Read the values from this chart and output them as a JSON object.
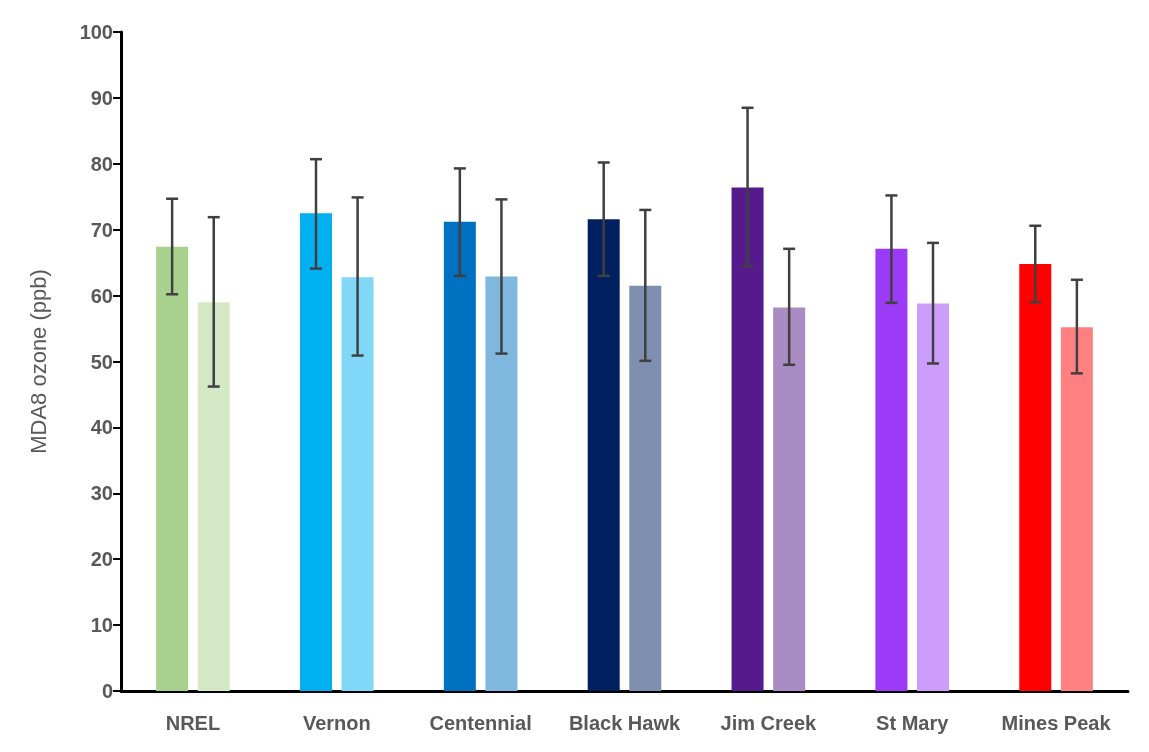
{
  "chart_data": {
    "type": "bar",
    "ylabel": "MDA8 ozone (ppb)",
    "categories": [
      "NREL",
      "Vernon",
      "Centennial",
      "Black Hawk",
      "Jim Creek",
      "St Mary",
      "Mines Peak"
    ],
    "series": [
      {
        "colors": [
          "#a9d18e",
          "#00b0f0",
          "#0070c0",
          "#002060",
          "#551a8b",
          "#9b3bf7",
          "#ff0000"
        ],
        "values": [
          67.4,
          72.5,
          71.2,
          71.6,
          76.4,
          67.1,
          64.8
        ],
        "errors": [
          [
            60.2,
            74.7
          ],
          [
            64.1,
            80.7
          ],
          [
            63.0,
            79.3
          ],
          [
            63.0,
            80.2
          ],
          [
            64.4,
            88.5
          ],
          [
            58.9,
            75.2
          ],
          [
            59.0,
            70.6
          ]
        ]
      },
      {
        "colors": [
          "#d4e8c6",
          "#80d7f7",
          "#7fb7df",
          "#7f8faf",
          "#aa8cc5",
          "#cd9dfb",
          "#ff8080"
        ],
        "values": [
          59.0,
          62.8,
          62.9,
          61.5,
          58.2,
          58.8,
          55.2
        ],
        "errors": [
          [
            46.2,
            71.9
          ],
          [
            50.9,
            74.9
          ],
          [
            51.2,
            74.6
          ],
          [
            50.1,
            73.0
          ],
          [
            49.5,
            67.1
          ],
          [
            49.7,
            68.0
          ],
          [
            48.2,
            62.4
          ]
        ]
      }
    ],
    "ylim": [
      0,
      100
    ],
    "yticks": [
      0,
      10,
      20,
      30,
      40,
      50,
      60,
      70,
      80,
      90,
      100
    ],
    "grid": false
  }
}
